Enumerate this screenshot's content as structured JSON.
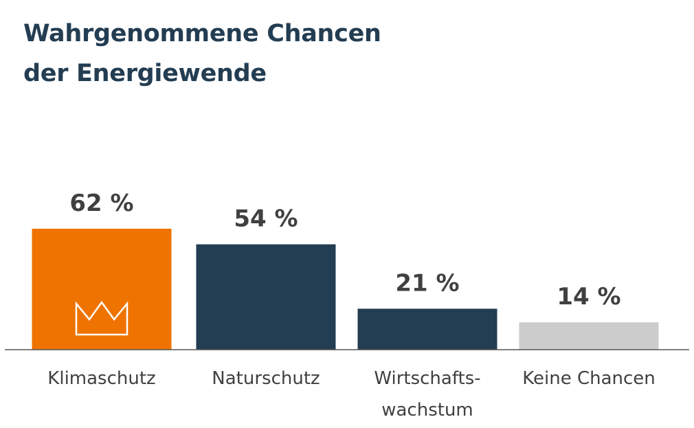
{
  "title_lines": [
    "Wahrgenommene Chancen",
    "der Energiewende"
  ],
  "colors": {
    "title": "#233d52",
    "highlight": "#ef7300",
    "primary": "#233d52",
    "neutral": "#cccccc",
    "text": "#404040",
    "baseline": "#555555"
  },
  "chart_data": {
    "type": "bar",
    "title": "Wahrgenommene Chancen der Energiewende",
    "categories": [
      [
        "Klimaschutz"
      ],
      [
        "Naturschutz"
      ],
      [
        "Wirtschafts-",
        "wachstum"
      ],
      [
        "Keine Chancen"
      ]
    ],
    "values": [
      62,
      54,
      21,
      14
    ],
    "value_labels": [
      "62 %",
      "54 %",
      "21 %",
      "14 %"
    ],
    "bar_colors": [
      "#ef7300",
      "#233d52",
      "#233d52",
      "#cccccc"
    ],
    "highlight_icon": "crown-icon",
    "highlight_index": 0,
    "xlabel": "",
    "ylabel": "",
    "grid": false
  }
}
